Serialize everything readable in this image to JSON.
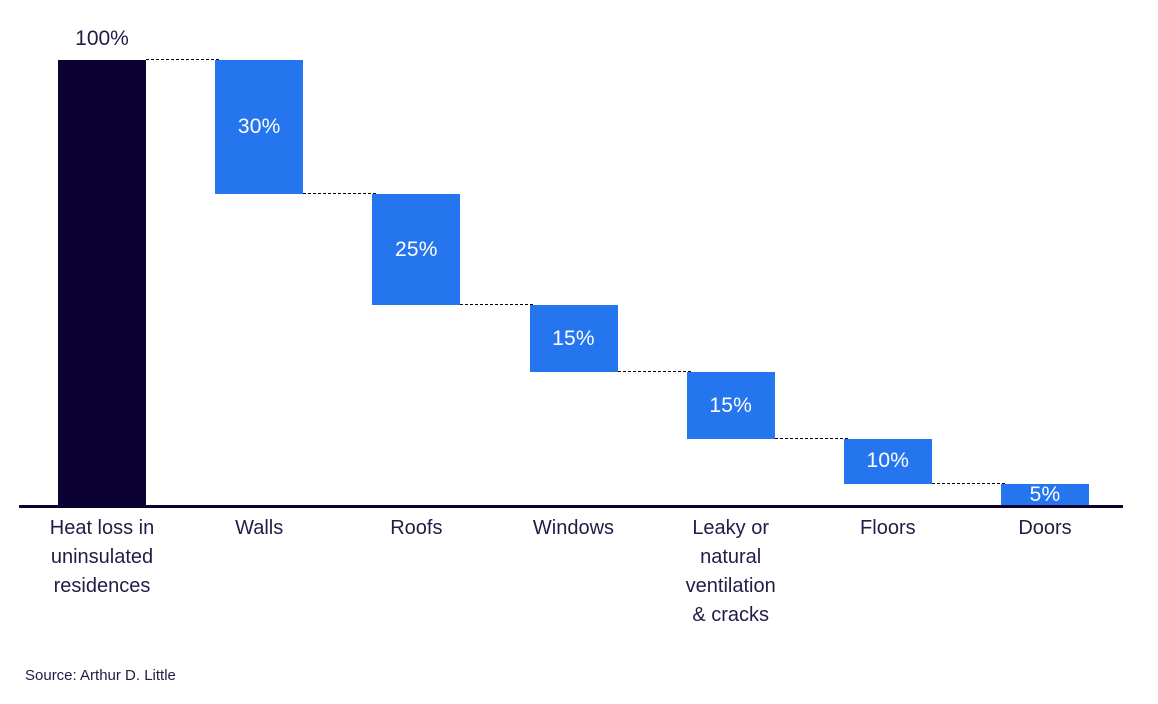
{
  "chart_data": {
    "type": "bar",
    "subtype": "waterfall",
    "title": "",
    "categories": [
      "Heat loss in uninsulated residences",
      "Walls",
      "Roofs",
      "Windows",
      "Leaky or natural ventilation & cracks",
      "Floors",
      "Doors"
    ],
    "category_lines": [
      [
        "Heat loss in",
        "uninsulated",
        "residences"
      ],
      [
        "Walls"
      ],
      [
        "Roofs"
      ],
      [
        "Windows"
      ],
      [
        "Leaky or",
        "natural",
        "ventilation",
        "& cracks"
      ],
      [
        "Floors"
      ],
      [
        "Doors"
      ]
    ],
    "values": [
      100,
      30,
      25,
      15,
      15,
      10,
      5
    ],
    "value_labels": [
      "100%",
      "30%",
      "25%",
      "15%",
      "15%",
      "10%",
      "5%"
    ],
    "first_bar_is_total": true,
    "direction": "decreasing",
    "ylim": [
      0,
      100
    ],
    "grid": false,
    "legend": false,
    "colors": {
      "total_bar": "#0c0232",
      "step_bar": "#2575ee",
      "value_label_inside": "#ffffff",
      "value_label_outside": "#221c46",
      "category_label": "#221c46",
      "axis_line": "#0c0232",
      "connector": "#000000",
      "background": "#ffffff"
    },
    "source_note": "Source: Arthur D. Little"
  }
}
